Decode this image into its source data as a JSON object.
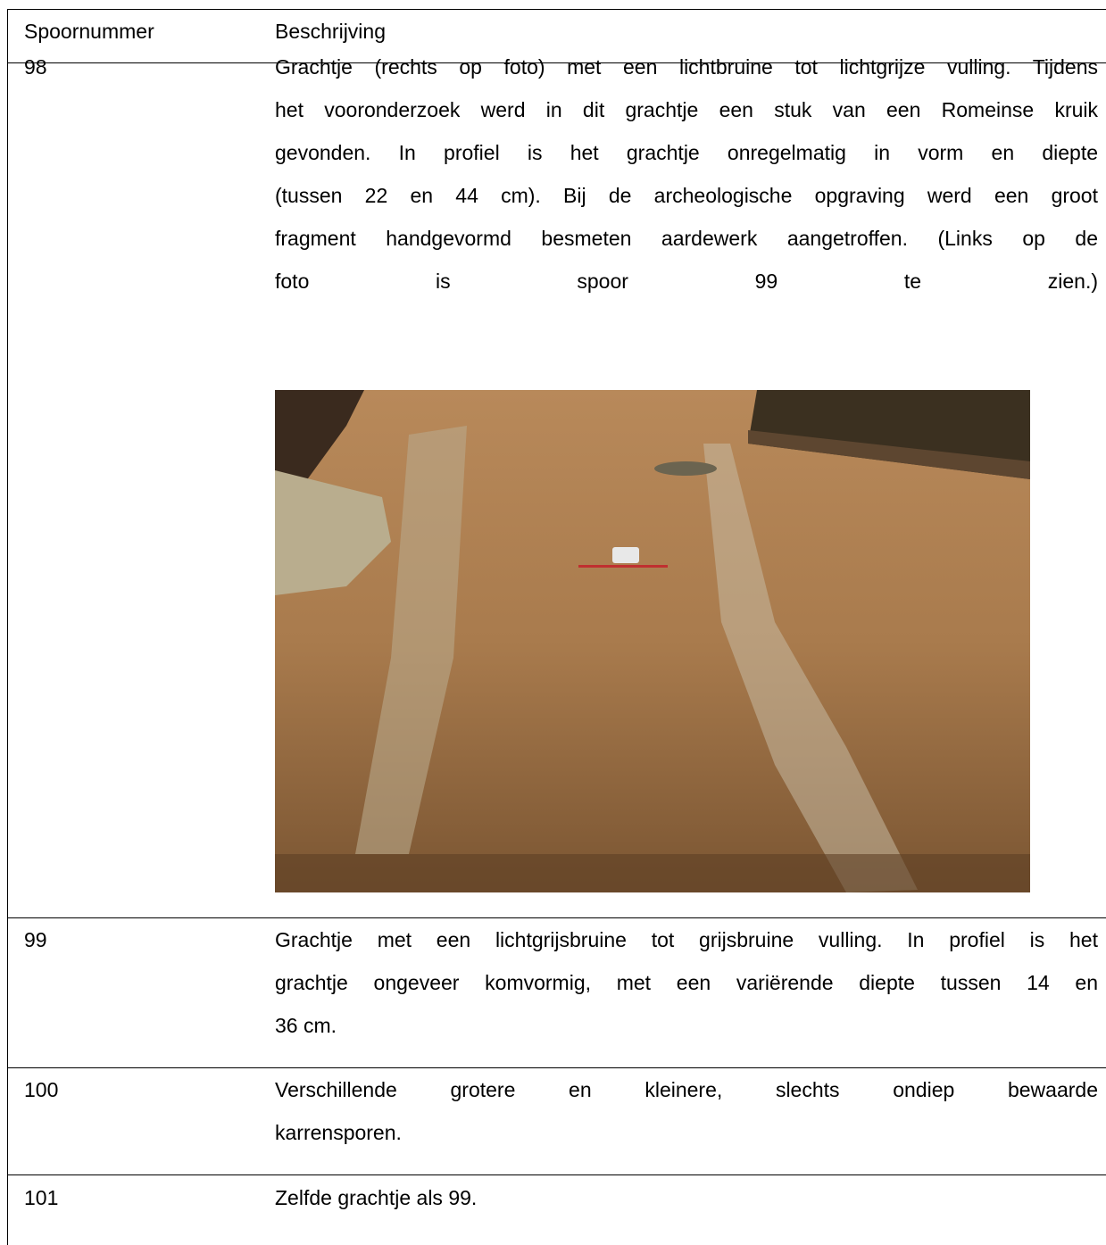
{
  "table": {
    "header": [
      "Spoornummer",
      "Beschrijving"
    ],
    "rows": [
      {
        "number": "98",
        "lines": [
          "Grachtje (rechts op foto) met een lichtbruine tot lichtgrijze vulling. Tijdens",
          "het vooronderzoek werd in dit grachtje een stuk van een Romeinse kruik",
          "gevonden. In profiel is het grachtje onregelmatig in vorm en diepte",
          "(tussen 22 en 44 cm). Bij de archeologische opgraving werd een groot",
          "fragment handgevormd besmeten aardewerk aangetroffen. (Links op de",
          "foto is spoor 99 te zien.)"
        ]
      },
      {
        "number": "99",
        "lines": [
          "Grachtje  met een lichtgrijsbruine tot grijsbruine vulling. In profiel is het",
          "grachtje ongeveer komvormig, met een variërende diepte tussen 14 en",
          "36 cm."
        ]
      },
      {
        "number": "100",
        "lines": [
          "Verschillende grotere en kleinere, slechts ondiep bewaarde",
          "karrensporen."
        ]
      },
      {
        "number": "101",
        "lines": [
          "Zelfde grachtje als 99."
        ]
      }
    ]
  }
}
